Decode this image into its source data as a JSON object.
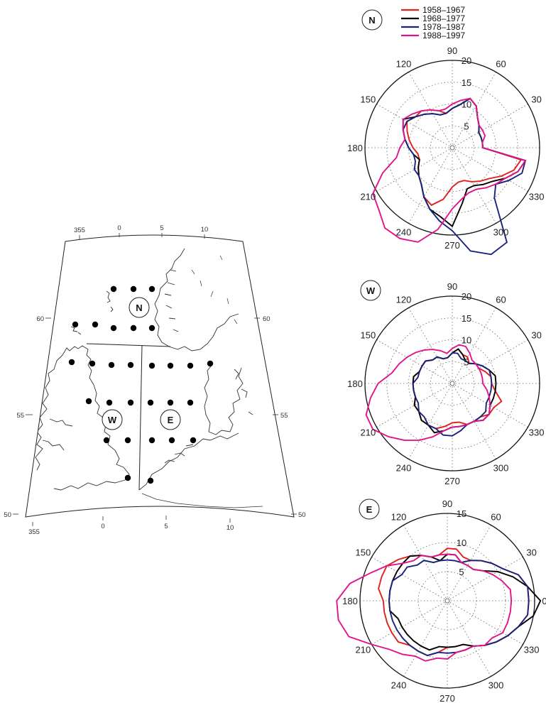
{
  "legend": [
    {
      "label": "1958–1967",
      "color": "#e0211c"
    },
    {
      "label": "1968–1977",
      "color": "#000000"
    },
    {
      "label": "1978–1987",
      "color": "#1a237e"
    },
    {
      "label": "1988–1997",
      "color": "#e0158a"
    }
  ],
  "map": {
    "lon_labels_top": [
      "355",
      "0",
      "5",
      "10"
    ],
    "lon_labels_bottom": [
      "355",
      "0",
      "5",
      "10"
    ],
    "lat_labels_left": [
      "60",
      "55",
      "50"
    ],
    "lat_labels_right": [
      "60",
      "55",
      "50"
    ],
    "regions": [
      "N",
      "W",
      "E"
    ]
  },
  "chart_data": [
    {
      "type": "polar-line",
      "panel": "N",
      "angle_labels": [
        "0",
        "30",
        "60",
        "90",
        "120",
        "150",
        "180",
        "210",
        "240",
        "270",
        "300",
        "330"
      ],
      "radial_ticks": [
        5,
        10,
        15,
        20
      ],
      "rmax": 20,
      "series": [
        {
          "name": "1958–1967",
          "r": [
            7,
            7,
            7,
            7,
            8,
            9,
            11,
            12,
            10,
            9,
            8,
            9,
            10,
            11,
            11,
            12,
            11,
            10,
            9,
            8,
            8,
            9,
            10,
            11,
            13,
            14,
            12,
            9,
            8,
            8,
            9,
            10,
            11,
            13,
            15,
            16
          ]
        },
        {
          "name": "1968–1977",
          "r": [
            7,
            7,
            7,
            7,
            8,
            9,
            11,
            12,
            10,
            9,
            8,
            8,
            9,
            10,
            11,
            13,
            12,
            11,
            10,
            9,
            8,
            9,
            10,
            11,
            13,
            15,
            16,
            18,
            13,
            10,
            10,
            11,
            12,
            14,
            16,
            17
          ]
        },
        {
          "name": "1978–1987",
          "r": [
            7,
            7,
            7,
            7,
            8,
            9,
            11,
            12,
            10,
            9,
            8,
            8,
            9,
            10,
            11,
            12,
            12,
            11,
            10,
            9,
            9,
            10,
            10,
            11,
            13,
            15,
            17,
            19,
            24,
            26,
            25,
            15,
            13,
            15,
            17,
            17
          ]
        },
        {
          "name": "1988–1997",
          "r": [
            7,
            7,
            8,
            8,
            8,
            9,
            11,
            12,
            11,
            10,
            9,
            9,
            10,
            11,
            12,
            13,
            12,
            11,
            12,
            13,
            17,
            21,
            22,
            24,
            24,
            23,
            19,
            14,
            12,
            11,
            11,
            12,
            13,
            14,
            16,
            17
          ]
        }
      ]
    },
    {
      "type": "polar-line",
      "panel": "W",
      "angle_labels": [
        "0",
        "30",
        "60",
        "90",
        "120",
        "150",
        "180",
        "210",
        "240",
        "270",
        "300",
        "330"
      ],
      "radial_ticks": [
        5,
        10,
        15,
        20
      ],
      "rmax": 20,
      "series": [
        {
          "name": "1958–1967",
          "r": [
            9,
            9,
            8,
            7,
            7,
            6,
            7,
            7,
            8,
            7,
            6,
            6,
            7,
            7,
            8,
            8,
            8,
            9,
            9,
            9,
            9,
            10,
            10,
            11,
            11,
            11,
            10,
            9,
            9,
            10,
            10,
            10,
            11,
            11,
            12,
            10
          ]
        },
        {
          "name": "1968–1977",
          "r": [
            10,
            10,
            9,
            8,
            7,
            6,
            6,
            7,
            8,
            7,
            6,
            6,
            7,
            7,
            8,
            8,
            8,
            9,
            9,
            9,
            9,
            10,
            10,
            11,
            11,
            12,
            11,
            10,
            10,
            10,
            10,
            11,
            11,
            10,
            10,
            10
          ]
        },
        {
          "name": "1978–1987",
          "r": [
            9,
            9,
            9,
            8,
            7,
            6,
            6,
            6,
            7,
            7,
            6,
            6,
            7,
            7,
            8,
            8,
            8,
            8,
            9,
            9,
            9,
            9,
            10,
            10,
            11,
            11,
            12,
            12,
            11,
            10,
            10,
            10,
            10,
            9,
            9,
            9
          ]
        },
        {
          "name": "1988–1997",
          "r": [
            7,
            7,
            7,
            7,
            7,
            7,
            8,
            9,
            9,
            8,
            7,
            8,
            9,
            10,
            11,
            12,
            13,
            14,
            17,
            19,
            21,
            21,
            19,
            17,
            15,
            13,
            11,
            10,
            10,
            10,
            10,
            11,
            11,
            10,
            9,
            8
          ]
        }
      ]
    },
    {
      "type": "polar-line",
      "panel": "E",
      "angle_labels": [
        "0",
        "30",
        "60",
        "90",
        "120",
        "150",
        "180",
        "210",
        "240",
        "270",
        "300",
        "330"
      ],
      "radial_ticks": [
        5,
        10,
        15
      ],
      "rmax": 15,
      "series": [
        {
          "name": "1958–1967",
          "r": [
            14,
            14,
            13,
            11,
            10,
            9,
            8,
            8,
            9,
            9,
            8,
            8,
            9,
            10,
            11,
            12,
            12,
            12,
            11,
            11,
            11,
            11,
            11,
            10,
            10,
            10,
            9,
            8,
            8,
            8,
            9,
            10,
            11,
            12,
            13,
            14
          ]
        },
        {
          "name": "1968–1977",
          "r": [
            16,
            14,
            12,
            10,
            8,
            7,
            7,
            7,
            8,
            8,
            7,
            8,
            9,
            10,
            10,
            10,
            10,
            10,
            10,
            10,
            9,
            9,
            9,
            9,
            9,
            9,
            8,
            8,
            8,
            8,
            9,
            10,
            11,
            12,
            13,
            15
          ]
        },
        {
          "name": "1978–1987",
          "r": [
            14,
            14,
            13,
            11,
            10,
            9,
            8,
            7,
            7,
            7,
            7,
            7,
            8,
            8,
            9,
            9,
            10,
            10,
            10,
            10,
            10,
            10,
            10,
            10,
            10,
            10,
            9,
            9,
            9,
            9,
            9,
            10,
            11,
            12,
            13,
            14
          ]
        },
        {
          "name": "1988–1997",
          "r": [
            11,
            11,
            10,
            9,
            8,
            7,
            7,
            7,
            8,
            8,
            8,
            8,
            9,
            9,
            10,
            12,
            14,
            17,
            19,
            19,
            18,
            15,
            13,
            12,
            11,
            11,
            10,
            10,
            9,
            9,
            9,
            10,
            10,
            11,
            11,
            11
          ]
        }
      ]
    }
  ]
}
